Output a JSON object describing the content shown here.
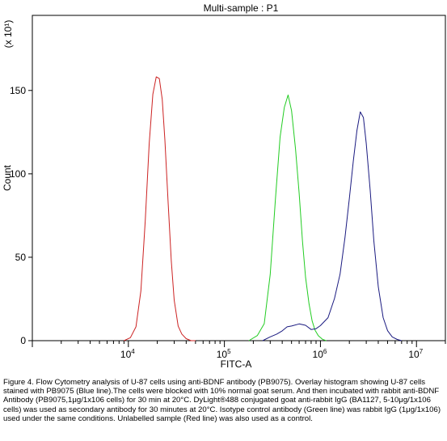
{
  "chart_data": {
    "type": "line",
    "title": "Multi-sample : P1",
    "xlabel": "FITC-A",
    "ylabel": "Count",
    "y_multiplier": "(x 10¹)",
    "x_scale": "log",
    "xlim": [
      1000,
      20000000
    ],
    "ylim": [
      0,
      195
    ],
    "x_ticks": [
      {
        "value": 10000,
        "base": "10",
        "exp": "4"
      },
      {
        "value": 100000,
        "base": "10",
        "exp": "5"
      },
      {
        "value": 1000000,
        "base": "10",
        "exp": "6"
      },
      {
        "value": 10000000,
        "base": "10",
        "exp": "7"
      }
    ],
    "y_ticks": [
      0,
      50,
      100,
      150
    ],
    "grid": false,
    "series": [
      {
        "color": "#cc2222",
        "x": [
          9000,
          10500,
          12000,
          13500,
          15000,
          16500,
          18000,
          19500,
          21000,
          22500,
          24000,
          26000,
          28000,
          30000,
          33000,
          36000,
          40000,
          45000,
          50000
        ],
        "y": [
          0,
          2,
          8,
          30,
          72,
          118,
          148,
          158,
          157,
          145,
          120,
          82,
          48,
          24,
          9,
          4,
          1,
          0,
          0
        ]
      },
      {
        "color": "#22cc22",
        "x": [
          180000,
          220000,
          260000,
          300000,
          340000,
          380000,
          420000,
          460000,
          500000,
          550000,
          600000,
          650000,
          700000,
          760000,
          820000,
          880000,
          950000,
          1050000,
          1150000
        ],
        "y": [
          0,
          3,
          10,
          40,
          85,
          122,
          140,
          147,
          138,
          115,
          88,
          60,
          38,
          22,
          12,
          6,
          3,
          1,
          0
        ]
      },
      {
        "color": "#1a1a80",
        "x": [
          250000,
          300000,
          350000,
          400000,
          450000,
          500000,
          600000,
          700000,
          800000,
          900000,
          1000000,
          1200000,
          1400000,
          1600000,
          1800000,
          2000000,
          2200000,
          2400000,
          2600000,
          2800000,
          3000000,
          3300000,
          3600000,
          4000000,
          4500000,
          5000000,
          5600000,
          6300000,
          7000000
        ],
        "y": [
          0,
          2,
          4,
          6,
          8,
          9,
          10,
          9,
          7,
          7,
          9,
          14,
          25,
          40,
          62,
          85,
          108,
          126,
          137,
          134,
          118,
          90,
          60,
          32,
          14,
          6,
          2,
          1,
          0
        ]
      }
    ]
  },
  "caption": {
    "text": "Figure 4. Flow Cytometry analysis of U-87 cells using anti-BDNF antibody (PB9075). Overlay histogram showing U-87 cells stained with PB9075 (Blue line).The cells were blocked with 10% normal goat serum. And then incubated with rabbit anti-BDNF Antibody (PB9075,1μg/1x106 cells) for 30 min at 20°C. DyLight®488 conjugated goat anti-rabbit IgG (BA1127, 5-10μg/1x106 cells) was used as secondary antibody for 30 minutes at 20°C. Isotype control antibody (Green line) was rabbit IgG (1μg/1x106) used under the same conditions. Unlabelled sample (Red line) was also used as a control."
  }
}
